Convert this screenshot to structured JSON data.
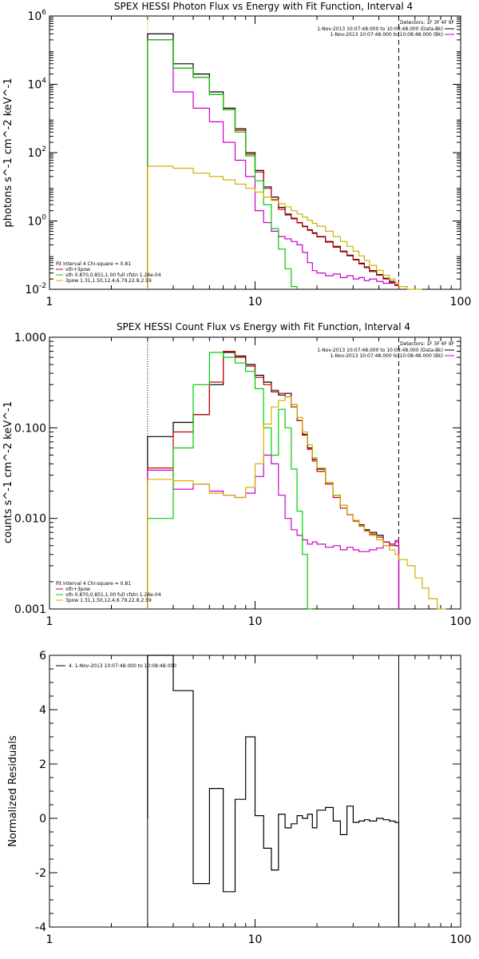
{
  "chart_data": [
    {
      "type": "line",
      "title": "SPEX HESSI Photon Flux vs Energy with Fit Function, Interval 4",
      "ylabel": "photons s^-1 cm^-2 keV^-1",
      "xlabel": "",
      "xscale": "log",
      "yscale": "log",
      "xlim": [
        1,
        100
      ],
      "ylim": [
        0.01,
        1000000
      ],
      "x_tick_labels": [
        "1",
        "10",
        "100"
      ],
      "y_tick_labels": [
        "10^-2",
        "10^0",
        "10^2",
        "10^4",
        "10^6"
      ],
      "legend_top_right": {
        "detectors": "Detectors: 1F 3F 4F 9F",
        "entries": [
          {
            "label": "1-Nov-2013 10:07:48.000 to 10:08:48.000 (Data-Bk)",
            "color": "#000000"
          },
          {
            "label": "1-Nov-2013 10:07:48.000 to 10:08:48.000 (Bk)",
            "color": "#cc00cc"
          }
        ]
      },
      "legend_bottom_left": {
        "header": "Fit Interval  4   Chi-square = 0.81",
        "entries": [
          {
            "label": "vth+3pow",
            "color": "#cc0000"
          },
          {
            "label": "vth 0.870,0.851,1.00  full cfstn 1.26e-04",
            "color": "#00cc00"
          },
          {
            "label": "3pow 1.31,1.50,12.4,6.79,22.8,2.59",
            "color": "#d4b000"
          }
        ]
      },
      "edges": [
        3,
        4,
        5,
        6,
        7,
        8,
        9,
        10,
        11,
        12,
        13,
        14,
        15,
        16,
        17,
        18,
        19,
        20,
        22,
        24,
        26,
        28,
        30,
        32,
        34,
        36,
        39,
        42,
        45,
        48,
        50
      ],
      "series": [
        {
          "name": "Data-Bk",
          "color": "#000000",
          "values": [
            300000,
            40000,
            20000,
            6000,
            2000,
            500,
            100,
            30,
            10,
            5,
            2.5,
            1.6,
            1.2,
            0.9,
            0.7,
            0.55,
            0.45,
            0.35,
            0.25,
            0.18,
            0.13,
            0.1,
            0.075,
            0.058,
            0.045,
            0.035,
            0.027,
            0.021,
            0.017,
            0.013
          ]
        },
        {
          "name": "vth+3pow",
          "color": "#cc0000",
          "values": [
            200000,
            30000,
            16000,
            5000,
            1800,
            450,
            90,
            27,
            9,
            4.2,
            2.2,
            1.5,
            1.15,
            0.88,
            0.68,
            0.53,
            0.43,
            0.34,
            0.24,
            0.17,
            0.125,
            0.095,
            0.072,
            0.055,
            0.043,
            0.033,
            0.026,
            0.02,
            0.016,
            0.013
          ]
        },
        {
          "name": "Background",
          "color": "#cc00cc",
          "values": [
            200000,
            6000,
            2000,
            800,
            200,
            60,
            20,
            2,
            0.9,
            0.5,
            0.35,
            0.3,
            0.25,
            0.2,
            0.12,
            0.06,
            0.035,
            0.03,
            0.025,
            0.028,
            0.022,
            0.025,
            0.02,
            0.022,
            0.018,
            0.02,
            0.017,
            0.015,
            0.015,
            0.014
          ]
        },
        {
          "name": "vth",
          "color": "#00cc00",
          "values": [
            200000,
            30000,
            16000,
            5000,
            1800,
            400,
            80,
            15,
            3,
            0.6,
            0.15,
            0.04,
            0.012
          ]
        },
        {
          "name": "3pow",
          "color": "#d4b000",
          "values": [
            40,
            35,
            25,
            20,
            16,
            12,
            9,
            7,
            5,
            4,
            3.2,
            2.6,
            2,
            1.6,
            1.3,
            1.05,
            0.85,
            0.7,
            0.5,
            0.35,
            0.25,
            0.18,
            0.13,
            0.095,
            0.07,
            0.05,
            0.036,
            0.026,
            0.02,
            0.016,
            0.012,
            0.009,
            0.007
          ],
          "extra_edges": [
            50,
            55,
            60,
            65
          ]
        }
      ],
      "vlines": [
        {
          "x": 3,
          "style": "dotted",
          "color": "#d4b000"
        },
        {
          "x": 50,
          "style": "dashed",
          "color": "#000000"
        }
      ]
    },
    {
      "type": "line",
      "title": "SPEX HESSI Count Flux vs Energy with Fit Function, Interval 4",
      "ylabel": "counts s^-1 cm^-2 keV^-1",
      "xlabel": "",
      "xscale": "log",
      "yscale": "log",
      "xlim": [
        1,
        100
      ],
      "ylim": [
        0.001,
        1.0
      ],
      "x_tick_labels": [
        "1",
        "10",
        "100"
      ],
      "y_tick_labels": [
        "0.001",
        "0.010",
        "0.100",
        "1.000"
      ],
      "legend_top_right": {
        "detectors": "Detectors: 1F 3F 4F 9F",
        "entries": [
          {
            "label": "1-Nov-2013 10:07:48.000 to 10:08:48.000 (Data-Bk)",
            "color": "#000000"
          },
          {
            "label": "1-Nov-2013 10:07:48.000 to 10:08:48.000 (Bk)",
            "color": "#cc00cc"
          }
        ]
      },
      "legend_bottom_left": {
        "header": "Fit Interval  4   Chi-square = 0.81",
        "entries": [
          {
            "label": "vth+3pow",
            "color": "#cc0000"
          },
          {
            "label": "vth 0.870,0.851,1.00  full cfstn 1.26e-04",
            "color": "#00cc00"
          },
          {
            "label": "3pow 1.31,1.50,12.4,6.79,22.8,2.59",
            "color": "#d4b000"
          }
        ]
      },
      "edges": [
        3,
        4,
        5,
        6,
        7,
        8,
        9,
        10,
        11,
        12,
        13,
        14,
        15,
        16,
        17,
        18,
        19,
        20,
        22,
        24,
        26,
        28,
        30,
        32,
        34,
        36,
        39,
        42,
        45,
        48,
        50
      ],
      "series": [
        {
          "name": "Data-Bk",
          "color": "#000000",
          "values": [
            0.08,
            0.115,
            0.14,
            0.3,
            0.68,
            0.62,
            0.5,
            0.38,
            0.32,
            0.25,
            0.23,
            0.24,
            0.18,
            0.12,
            0.085,
            0.06,
            0.045,
            0.035,
            0.025,
            0.018,
            0.014,
            0.011,
            0.0095,
            0.0085,
            0.0075,
            0.007,
            0.0065,
            0.0055,
            0.0052,
            0.005
          ]
        },
        {
          "name": "vth+3pow",
          "color": "#cc0000",
          "values": [
            0.036,
            0.09,
            0.14,
            0.32,
            0.7,
            0.6,
            0.48,
            0.36,
            0.3,
            0.26,
            0.24,
            0.22,
            0.17,
            0.12,
            0.083,
            0.058,
            0.043,
            0.033,
            0.024,
            0.017,
            0.013,
            0.011,
            0.0093,
            0.0082,
            0.0073,
            0.0067,
            0.0062,
            0.0055,
            0.005,
            0.0055
          ]
        },
        {
          "name": "Background",
          "color": "#cc00cc",
          "values": [
            0.034,
            0.021,
            0.024,
            0.02,
            0.018,
            0.017,
            0.019,
            0.029,
            0.05,
            0.04,
            0.018,
            0.01,
            0.0075,
            0.0065,
            0.0058,
            0.0052,
            0.0055,
            0.0052,
            0.0048,
            0.005,
            0.0045,
            0.0048,
            0.0045,
            0.0043,
            0.0043,
            0.0045,
            0.0047,
            0.005,
            0.0052,
            0.0057
          ]
        },
        {
          "name": "vth",
          "color": "#00cc00",
          "values": [
            0.01,
            0.06,
            0.3,
            0.68,
            0.6,
            0.52,
            0.42,
            0.27,
            0.1,
            0.05,
            0.16,
            0.1,
            0.035,
            0.012,
            0.004,
            0.001
          ]
        },
        {
          "name": "3pow",
          "color": "#d4b000",
          "values": [
            0.027,
            0.026,
            0.024,
            0.019,
            0.018,
            0.017,
            0.022,
            0.04,
            0.11,
            0.17,
            0.2,
            0.22,
            0.18,
            0.13,
            0.09,
            0.065,
            0.047,
            0.036,
            0.025,
            0.018,
            0.014,
            0.011,
            0.0095,
            0.0083,
            0.0072,
            0.0065,
            0.0058,
            0.005,
            0.0045,
            0.004,
            0.0035,
            0.003,
            0.0022,
            0.0017,
            0.0013,
            0.001
          ],
          "extra_edges": [
            50,
            55,
            60,
            65,
            70,
            77,
            85
          ]
        }
      ],
      "vlines": [
        {
          "x": 3,
          "style": "dotted",
          "color": "#000000"
        },
        {
          "x": 50,
          "style": "dashed",
          "color": "#000000"
        }
      ]
    },
    {
      "type": "line",
      "title": "",
      "ylabel": "Normalized Residuals",
      "xlabel": "",
      "xscale": "log",
      "yscale": "linear",
      "xlim": [
        1,
        100
      ],
      "ylim": [
        -4,
        6
      ],
      "x_tick_labels": [
        "1",
        "10",
        "100"
      ],
      "y_tick_labels": [
        "-4",
        "-2",
        "0",
        "2",
        "4",
        "6"
      ],
      "legend": "4. 1-Nov-2013 10:07:48.000 to 10:08:48.000",
      "edges": [
        3,
        4,
        5,
        6,
        7,
        8,
        9,
        10,
        11,
        12,
        13,
        14,
        15,
        16,
        17,
        18,
        19,
        20,
        22,
        24,
        26,
        28,
        30,
        32,
        34,
        36,
        39,
        42,
        45,
        48,
        50
      ],
      "series": [
        {
          "name": "4. 1-Nov-2013 10:07:48.000 to 10:08:48.000",
          "color": "#000000",
          "values": [
            6,
            4.7,
            -2.4,
            1.1,
            -2.7,
            0.7,
            3,
            0.1,
            -1.1,
            -1.9,
            0.15,
            -0.35,
            -0.2,
            0.1,
            0.0,
            0.15,
            -0.35,
            0.3,
            0.4,
            -0.1,
            -0.6,
            0.45,
            -0.15,
            -0.1,
            -0.05,
            -0.1,
            0.0,
            -0.05,
            -0.1,
            -0.15
          ]
        }
      ],
      "vlines": [
        {
          "x": 3,
          "style": "solid",
          "color": "#000000"
        },
        {
          "x": 50,
          "style": "solid",
          "color": "#000000"
        }
      ]
    }
  ]
}
